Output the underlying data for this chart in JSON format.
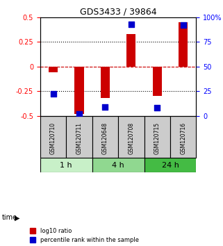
{
  "title": "GDS3433 / 39864",
  "samples": [
    "GSM120710",
    "GSM120711",
    "GSM120648",
    "GSM120708",
    "GSM120715",
    "GSM120716"
  ],
  "log10_ratio": [
    -0.06,
    -0.48,
    -0.32,
    0.33,
    -0.3,
    0.45
  ],
  "percentile_rank": [
    0.22,
    0.02,
    0.09,
    0.93,
    0.08,
    0.92
  ],
  "time_groups": [
    {
      "label": "1 h",
      "indices": [
        0,
        1
      ],
      "color": "#c8f0c8"
    },
    {
      "label": "4 h",
      "indices": [
        2,
        3
      ],
      "color": "#90d890"
    },
    {
      "label": "24 h",
      "indices": [
        4,
        5
      ],
      "color": "#44bb44"
    }
  ],
  "ylim_left": [
    -0.5,
    0.5
  ],
  "ylim_right": [
    0,
    100
  ],
  "yticks_left": [
    -0.5,
    -0.25,
    0,
    0.25,
    0.5
  ],
  "yticks_right": [
    0,
    25,
    50,
    75,
    100
  ],
  "ytick_labels_left": [
    "-0.5",
    "-0.25",
    "0",
    "0.25",
    "0.5"
  ],
  "ytick_labels_right": [
    "0",
    "25",
    "50",
    "75",
    "100%"
  ],
  "bar_color": "#cc0000",
  "dot_color": "#0000cc",
  "hline_color": "#cc0000",
  "grid_color": "#000000",
  "bg_color": "#ffffff",
  "plot_bg": "#ffffff",
  "sample_box_color": "#cccccc",
  "bar_width": 0.35,
  "dot_size": 40
}
